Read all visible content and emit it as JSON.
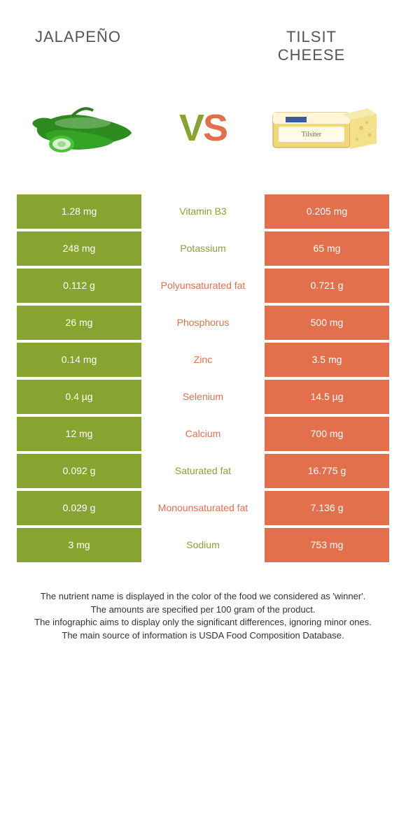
{
  "colors": {
    "green": "#87a330",
    "orange": "#e2704c",
    "vs_v": "#87a330",
    "vs_s": "#e2704c",
    "row_label_green": "#87a330",
    "row_label_orange": "#e2704c"
  },
  "header": {
    "left": "JALAPEÑO",
    "right": "TILSIT CHEESE"
  },
  "vs": {
    "v": "V",
    "s": "S"
  },
  "rows": [
    {
      "left": "1.28 mg",
      "label": "Vitamin B3",
      "right": "0.205 mg",
      "winner": "left"
    },
    {
      "left": "248 mg",
      "label": "Potassium",
      "right": "65 mg",
      "winner": "left"
    },
    {
      "left": "0.112 g",
      "label": "Polyunsaturated fat",
      "right": "0.721 g",
      "winner": "right"
    },
    {
      "left": "26 mg",
      "label": "Phosphorus",
      "right": "500 mg",
      "winner": "right"
    },
    {
      "left": "0.14 mg",
      "label": "Zinc",
      "right": "3.5 mg",
      "winner": "right"
    },
    {
      "left": "0.4 µg",
      "label": "Selenium",
      "right": "14.5 µg",
      "winner": "right"
    },
    {
      "left": "12 mg",
      "label": "Calcium",
      "right": "700 mg",
      "winner": "right"
    },
    {
      "left": "0.092 g",
      "label": "Saturated fat",
      "right": "16.775 g",
      "winner": "left"
    },
    {
      "left": "0.029 g",
      "label": "Monounsaturated fat",
      "right": "7.136 g",
      "winner": "right"
    },
    {
      "left": "3 mg",
      "label": "Sodium",
      "right": "753 mg",
      "winner": "left"
    }
  ],
  "footer": {
    "l1": "The nutrient name is displayed in the color of the food we considered as 'winner'.",
    "l2": "The amounts are specified per 100 gram of the product.",
    "l3": "The infographic aims to display only the significant differences, ignoring minor ones.",
    "l4": "The main source of information is USDA Food Composition Database."
  }
}
